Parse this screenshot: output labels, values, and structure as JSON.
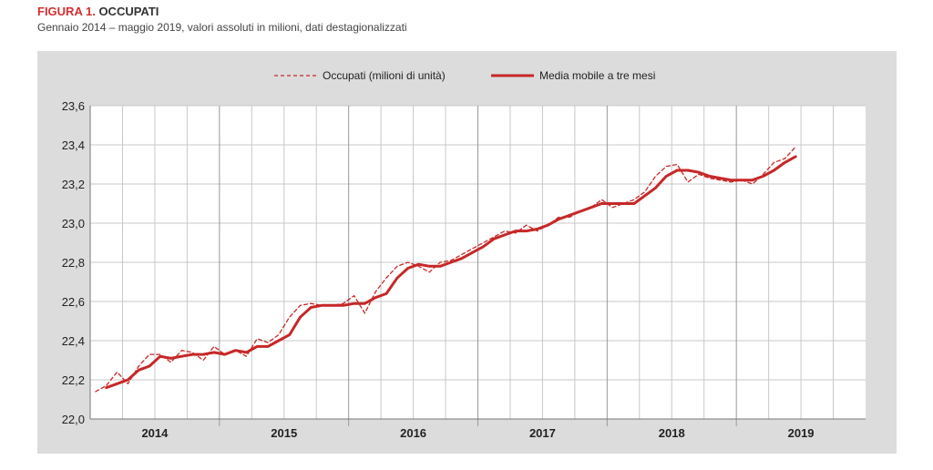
{
  "figure": {
    "label": "FIGURA 1.",
    "title": "OCCUPATI",
    "subtitle": "Gennaio 2014 – maggio 2019, valori assoluti in milioni, dati destagionalizzati"
  },
  "chart_data": {
    "type": "line",
    "ylim": [
      22.0,
      23.6
    ],
    "y_ticks": [
      "22,0",
      "22,2",
      "22,4",
      "22,6",
      "22,8",
      "23,0",
      "23,2",
      "23,4",
      "23,6"
    ],
    "x_year_labels": [
      "2014",
      "2015",
      "2016",
      "2017",
      "2018",
      "2019"
    ],
    "x_start": "2014-01",
    "legend_position": "top-center",
    "grid": true,
    "colors": {
      "series": "#c62828",
      "plot_bg": "#ffffff",
      "panel_bg": "#dcdcdc",
      "grid": "#c8c8c8"
    },
    "series": [
      {
        "name": "Occupati (milioni di unità)",
        "style": "dashed",
        "values": [
          22.14,
          22.17,
          22.24,
          22.18,
          22.27,
          22.33,
          22.33,
          22.29,
          22.35,
          22.34,
          22.3,
          22.37,
          22.33,
          22.35,
          22.32,
          22.41,
          22.39,
          22.43,
          22.52,
          22.58,
          22.59,
          22.58,
          22.58,
          22.59,
          22.63,
          22.54,
          22.65,
          22.72,
          22.78,
          22.8,
          22.78,
          22.75,
          22.8,
          22.81,
          22.84,
          22.87,
          22.9,
          22.93,
          22.96,
          22.95,
          22.99,
          22.96,
          22.99,
          23.03,
          23.03,
          23.06,
          23.08,
          23.12,
          23.08,
          23.1,
          23.12,
          23.16,
          23.24,
          23.29,
          23.3,
          23.21,
          23.25,
          23.23,
          23.22,
          23.21,
          23.22,
          23.2,
          23.25,
          23.31,
          23.33,
          23.39
        ]
      },
      {
        "name": "Media mobile a tre mesi",
        "style": "solid",
        "values": [
          null,
          22.16,
          22.18,
          22.2,
          22.25,
          22.27,
          22.32,
          22.31,
          22.32,
          22.33,
          22.33,
          22.34,
          22.33,
          22.35,
          22.34,
          22.37,
          22.37,
          22.4,
          22.43,
          22.52,
          22.57,
          22.58,
          22.58,
          22.58,
          22.59,
          22.59,
          22.62,
          22.64,
          22.72,
          22.77,
          22.79,
          22.78,
          22.78,
          22.8,
          22.82,
          22.85,
          22.88,
          22.92,
          22.94,
          22.96,
          22.96,
          22.97,
          22.99,
          23.02,
          23.04,
          23.06,
          23.08,
          23.1,
          23.1,
          23.1,
          23.1,
          23.14,
          23.18,
          23.24,
          23.27,
          23.27,
          23.26,
          23.24,
          23.23,
          23.22,
          23.22,
          23.22,
          23.24,
          23.27,
          23.31,
          23.34
        ]
      }
    ]
  }
}
